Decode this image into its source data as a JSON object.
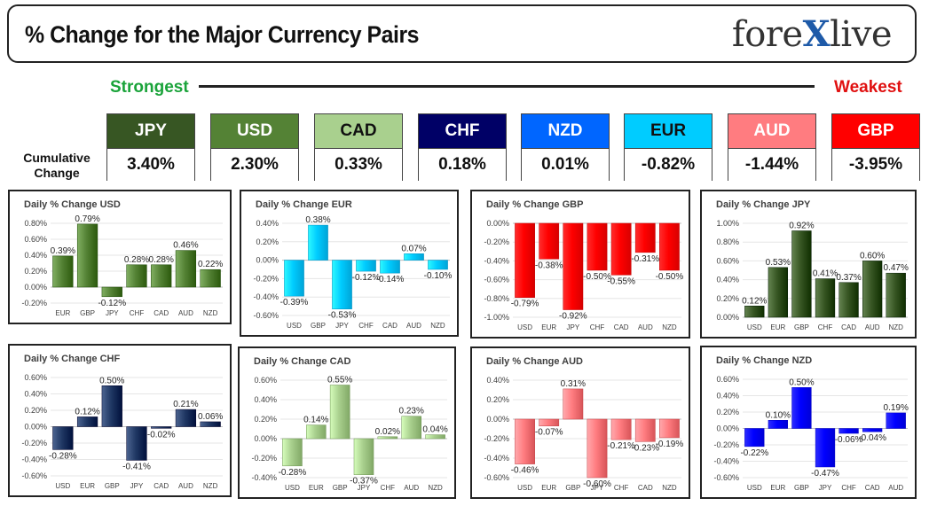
{
  "header": {
    "title": "% Change for the Major Currency Pairs",
    "logo_a": "fore",
    "logo_x": "X",
    "logo_b": "live"
  },
  "scale": {
    "strongest": "Strongest",
    "weakest": "Weakest",
    "cumulative_line1": "Cumulative",
    "cumulative_line2": "Change"
  },
  "currencies": [
    {
      "name": "JPY",
      "value": "3.40%",
      "bg": "#375623",
      "fg": "#ffffff"
    },
    {
      "name": "USD",
      "value": "2.30%",
      "bg": "#548235",
      "fg": "#ffffff"
    },
    {
      "name": "CAD",
      "value": "0.33%",
      "bg": "#a9d08e",
      "fg": "#111111"
    },
    {
      "name": "CHF",
      "value": "0.18%",
      "bg": "#000066",
      "fg": "#ffffff"
    },
    {
      "name": "NZD",
      "value": "0.01%",
      "bg": "#0066ff",
      "fg": "#ffffff"
    },
    {
      "name": "EUR",
      "value": "-0.82%",
      "bg": "#00ccff",
      "fg": "#111111"
    },
    {
      "name": "AUD",
      "value": "-1.44%",
      "bg": "#ff7c80",
      "fg": "#ffffff"
    },
    {
      "name": "GBP",
      "value": "-3.95%",
      "bg": "#ff0000",
      "fg": "#ffffff"
    }
  ],
  "chart_data": [
    {
      "type": "bar",
      "title": "Daily % Change USD",
      "categories": [
        "EUR",
        "GBP",
        "JPY",
        "CHF",
        "CAD",
        "AUD",
        "NZD"
      ],
      "values": [
        0.39,
        0.79,
        -0.12,
        0.28,
        0.28,
        0.46,
        0.22
      ],
      "labels": [
        "0.39%",
        "0.79%",
        "-0.12%",
        "0.28%",
        "0.28%",
        "0.46%",
        "0.22%"
      ],
      "ylim": [
        -0.2,
        0.8
      ],
      "ticks": [
        -0.2,
        0,
        0.2,
        0.4,
        0.6,
        0.8
      ],
      "tick_labels": [
        "-0.20%",
        "0.00%",
        "0.20%",
        "0.40%",
        "0.60%",
        "0.80%"
      ],
      "color": "#548235"
    },
    {
      "type": "bar",
      "title": "Daily % Change EUR",
      "categories": [
        "USD",
        "GBP",
        "JPY",
        "CHF",
        "CAD",
        "AUD",
        "NZD"
      ],
      "values": [
        -0.39,
        0.38,
        -0.53,
        -0.12,
        -0.14,
        0.07,
        -0.1
      ],
      "labels": [
        "-0.39%",
        "0.38%",
        "-0.53%",
        "-0.12%",
        "-0.14%",
        "0.07%",
        "-0.10%"
      ],
      "ylim": [
        -0.6,
        0.4
      ],
      "ticks": [
        -0.6,
        -0.4,
        -0.2,
        0,
        0.2,
        0.4
      ],
      "tick_labels": [
        "-0.60%",
        "-0.40%",
        "-0.20%",
        "0.00%",
        "0.20%",
        "0.40%"
      ],
      "color": "#00ccff"
    },
    {
      "type": "bar",
      "title": "Daily % Change GBP",
      "categories": [
        "USD",
        "EUR",
        "JPY",
        "CHF",
        "CAD",
        "AUD",
        "NZD"
      ],
      "values": [
        -0.79,
        -0.38,
        -0.92,
        -0.5,
        -0.55,
        -0.31,
        -0.5
      ],
      "labels": [
        "-0.79%",
        "-0.38%",
        "-0.92%",
        "-0.50%",
        "-0.55%",
        "-0.31%",
        "-0.50%"
      ],
      "ylim": [
        -1.0,
        0
      ],
      "ticks": [
        -1.0,
        -0.8,
        -0.6,
        -0.4,
        -0.2,
        0
      ],
      "tick_labels": [
        "-1.00%",
        "-0.80%",
        "-0.60%",
        "-0.40%",
        "-0.20%",
        "0.00%"
      ],
      "color": "#ff0000"
    },
    {
      "type": "bar",
      "title": "Daily % Change JPY",
      "categories": [
        "USD",
        "EUR",
        "GBP",
        "CHF",
        "CAD",
        "AUD",
        "NZD"
      ],
      "values": [
        0.12,
        0.53,
        0.92,
        0.41,
        0.37,
        0.6,
        0.47
      ],
      "labels": [
        "0.12%",
        "0.53%",
        "0.92%",
        "0.41%",
        "0.37%",
        "0.60%",
        "0.47%"
      ],
      "ylim": [
        0,
        1.0
      ],
      "ticks": [
        0,
        0.2,
        0.4,
        0.6,
        0.8,
        1.0
      ],
      "tick_labels": [
        "0.00%",
        "0.20%",
        "0.40%",
        "0.60%",
        "0.80%",
        "1.00%"
      ],
      "color": "#375623"
    },
    {
      "type": "bar",
      "title": "Daily % Change CHF",
      "categories": [
        "USD",
        "EUR",
        "GBP",
        "JPY",
        "CAD",
        "AUD",
        "NZD"
      ],
      "values": [
        -0.28,
        0.12,
        0.5,
        -0.41,
        -0.02,
        0.21,
        0.06
      ],
      "labels": [
        "-0.28%",
        "0.12%",
        "0.50%",
        "-0.41%",
        "-0.02%",
        "0.21%",
        "0.06%"
      ],
      "ylim": [
        -0.6,
        0.6
      ],
      "ticks": [
        -0.6,
        -0.4,
        -0.2,
        0,
        0.2,
        0.4,
        0.6
      ],
      "tick_labels": [
        "-0.60%",
        "-0.40%",
        "-0.20%",
        "0.00%",
        "0.20%",
        "0.40%",
        "0.60%"
      ],
      "color": "#203864"
    },
    {
      "type": "bar",
      "title": "Daily % Change CAD",
      "categories": [
        "USD",
        "EUR",
        "GBP",
        "JPY",
        "CHF",
        "AUD",
        "NZD"
      ],
      "values": [
        -0.28,
        0.14,
        0.55,
        -0.37,
        0.02,
        0.23,
        0.04
      ],
      "labels": [
        "-0.28%",
        "0.14%",
        "0.55%",
        "-0.37%",
        "0.02%",
        "0.23%",
        "0.04%"
      ],
      "ylim": [
        -0.4,
        0.6
      ],
      "ticks": [
        -0.4,
        -0.2,
        0,
        0.2,
        0.4,
        0.6
      ],
      "tick_labels": [
        "-0.40%",
        "-0.20%",
        "0.00%",
        "0.20%",
        "0.40%",
        "0.60%"
      ],
      "color": "#a9d08e"
    },
    {
      "type": "bar",
      "title": "Daily % Change AUD",
      "categories": [
        "USD",
        "EUR",
        "GBP",
        "JPY",
        "CHF",
        "CAD",
        "NZD"
      ],
      "values": [
        -0.46,
        -0.07,
        0.31,
        -0.6,
        -0.21,
        -0.23,
        -0.19
      ],
      "labels": [
        "-0.46%",
        "-0.07%",
        "0.31%",
        "-0.60%",
        "-0.21%",
        "-0.23%",
        "-0.19%"
      ],
      "ylim": [
        -0.6,
        0.4
      ],
      "ticks": [
        -0.6,
        -0.4,
        -0.2,
        0,
        0.2,
        0.4
      ],
      "tick_labels": [
        "-0.60%",
        "-0.40%",
        "-0.20%",
        "0.00%",
        "0.20%",
        "0.40%"
      ],
      "color": "#ff7c80"
    },
    {
      "type": "bar",
      "title": "Daily % Change NZD",
      "categories": [
        "USD",
        "EUR",
        "GBP",
        "JPY",
        "CHF",
        "CAD",
        "AUD"
      ],
      "values": [
        -0.22,
        0.1,
        0.5,
        -0.47,
        -0.06,
        -0.04,
        0.19
      ],
      "labels": [
        "-0.22%",
        "0.10%",
        "0.50%",
        "-0.47%",
        "-0.06%",
        "-0.04%",
        "0.19%"
      ],
      "ylim": [
        -0.6,
        0.6
      ],
      "ticks": [
        -0.6,
        -0.4,
        -0.2,
        0,
        0.2,
        0.4,
        0.6
      ],
      "tick_labels": [
        "-0.60%",
        "-0.40%",
        "-0.20%",
        "0.00%",
        "0.20%",
        "0.40%",
        "0.60%"
      ],
      "color": "#0000ff"
    }
  ]
}
